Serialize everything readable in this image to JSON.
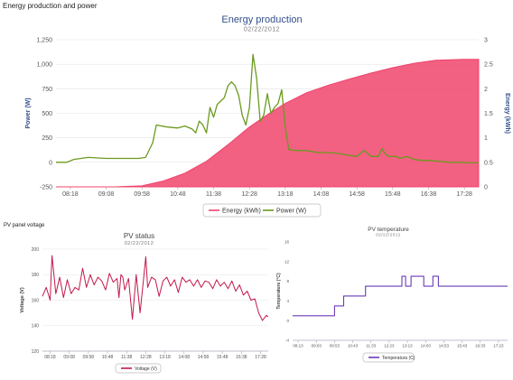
{
  "page": {
    "title": "Energy production and power",
    "pv_panel_label": "PV panel voltage"
  },
  "colors": {
    "energy": "#f0446c",
    "power": "#6b9a1f",
    "voltage": "#c2184b",
    "temperature": "#6a3bb6",
    "title_blue": "#34508a"
  },
  "chart_data": [
    {
      "id": "energy",
      "type": "area+line",
      "title": "Energy production",
      "subtitle": "02/22/2012",
      "ylabel_left": "Power (W)",
      "ylabel_right": "Energy (kWh)",
      "ylim_left": [
        -250,
        1250
      ],
      "ylim_right": [
        0,
        3
      ],
      "yticks_left": [
        "-250",
        "0",
        "250",
        "500",
        "750",
        "1,000",
        "1,250"
      ],
      "yticks_right": [
        "0",
        "0.5",
        "1",
        "1.5",
        "2",
        "2.5",
        "3"
      ],
      "xticks": [
        "08:18",
        "09:08",
        "09:58",
        "10:48",
        "11:38",
        "12:28",
        "13:18",
        "14:08",
        "14:58",
        "15:48",
        "16:38",
        "17:28"
      ],
      "x_start": "07:58",
      "x_end": "17:48",
      "legend": "bottom-center",
      "series": [
        {
          "name": "Energy (kWh)",
          "axis": "right",
          "type": "area",
          "x": [
            "07:58",
            "09:18",
            "09:58",
            "10:28",
            "10:58",
            "11:28",
            "11:58",
            "12:28",
            "12:58",
            "13:18",
            "13:48",
            "14:18",
            "14:48",
            "15:18",
            "15:48",
            "16:18",
            "16:48",
            "17:28",
            "17:48"
          ],
          "y": [
            0,
            0,
            0.02,
            0.12,
            0.28,
            0.52,
            0.86,
            1.22,
            1.52,
            1.7,
            1.92,
            2.07,
            2.2,
            2.32,
            2.43,
            2.52,
            2.58,
            2.6,
            2.6
          ]
        },
        {
          "name": "Power (W)",
          "axis": "left",
          "type": "line",
          "x": [
            "07:58",
            "08:13",
            "08:23",
            "08:43",
            "09:08",
            "09:38",
            "09:53",
            "10:03",
            "10:13",
            "10:18",
            "10:33",
            "10:48",
            "10:58",
            "11:08",
            "11:13",
            "11:18",
            "11:23",
            "11:28",
            "11:33",
            "11:38",
            "11:43",
            "11:53",
            "11:58",
            "12:03",
            "12:08",
            "12:13",
            "12:18",
            "12:23",
            "12:28",
            "12:33",
            "12:38",
            "12:43",
            "12:48",
            "12:53",
            "12:58",
            "13:03",
            "13:08",
            "13:13",
            "13:18",
            "13:23",
            "13:33",
            "13:48",
            "14:03",
            "14:18",
            "14:33",
            "14:48",
            "14:58",
            "15:08",
            "15:18",
            "15:28",
            "15:33",
            "15:38",
            "15:43",
            "15:48",
            "15:53",
            "15:58",
            "16:08",
            "16:18",
            "16:28",
            "16:38",
            "16:53",
            "17:08",
            "17:23",
            "17:38",
            "17:48"
          ],
          "y": [
            0,
            0,
            30,
            50,
            40,
            40,
            40,
            50,
            200,
            380,
            360,
            350,
            370,
            340,
            300,
            420,
            380,
            300,
            560,
            460,
            590,
            660,
            780,
            820,
            780,
            680,
            480,
            380,
            560,
            1100,
            860,
            420,
            480,
            700,
            500,
            560,
            600,
            740,
            360,
            130,
            120,
            120,
            100,
            100,
            90,
            70,
            60,
            120,
            60,
            60,
            140,
            80,
            60,
            60,
            60,
            40,
            60,
            30,
            20,
            20,
            10,
            0,
            0,
            -5,
            -5
          ]
        }
      ]
    },
    {
      "id": "pv",
      "type": "line",
      "title": "PV status",
      "subtitle": "02/22/2012",
      "ylabel": "Voltage (V)",
      "ylim": [
        120,
        200
      ],
      "yticks": [
        "120",
        "140",
        "160",
        "180",
        "200"
      ],
      "xticks": [
        "08:18",
        "09:08",
        "09:58",
        "10:48",
        "11:38",
        "12:28",
        "13:18",
        "14:08",
        "14:58",
        "15:48",
        "16:38",
        "17:28"
      ],
      "x_start": "07:58",
      "x_end": "17:48",
      "legend": "bottom-center",
      "series": [
        {
          "name": "Voltage (V)",
          "x": [
            "07:58",
            "08:08",
            "08:18",
            "08:23",
            "08:33",
            "08:43",
            "08:48",
            "08:53",
            "09:03",
            "09:13",
            "09:23",
            "09:33",
            "09:43",
            "09:53",
            "10:03",
            "10:13",
            "10:23",
            "10:33",
            "10:43",
            "10:53",
            "11:03",
            "11:13",
            "11:18",
            "11:23",
            "11:28",
            "11:33",
            "11:43",
            "11:53",
            "12:03",
            "12:13",
            "12:23",
            "12:28",
            "12:33",
            "12:43",
            "12:53",
            "13:03",
            "13:13",
            "13:23",
            "13:33",
            "13:43",
            "13:53",
            "14:03",
            "14:13",
            "14:23",
            "14:33",
            "14:43",
            "14:53",
            "15:03",
            "15:13",
            "15:23",
            "15:33",
            "15:43",
            "15:53",
            "16:03",
            "16:13",
            "16:23",
            "16:33",
            "16:43",
            "16:53",
            "17:03",
            "17:13",
            "17:23",
            "17:33",
            "17:43",
            "17:48"
          ],
          "y": [
            163,
            170,
            160,
            195,
            165,
            178,
            170,
            162,
            176,
            165,
            170,
            168,
            185,
            170,
            180,
            172,
            178,
            175,
            168,
            181,
            174,
            177,
            162,
            180,
            178,
            168,
            177,
            145,
            180,
            150,
            179,
            194,
            170,
            178,
            176,
            163,
            175,
            178,
            171,
            176,
            166,
            178,
            174,
            176,
            171,
            176,
            170,
            175,
            174,
            169,
            176,
            171,
            174,
            169,
            175,
            167,
            172,
            164,
            167,
            160,
            161,
            150,
            144,
            148,
            147
          ]
        }
      ]
    },
    {
      "id": "temp",
      "type": "line",
      "title": "PV temperature",
      "subtitle": "02/22/2012",
      "ylabel": "Temperature (°C)",
      "ylim": [
        -4,
        16
      ],
      "yticks": [
        "-4",
        "0",
        "4",
        "8",
        "12",
        "16"
      ],
      "xticks": [
        "08:13",
        "09:03",
        "09:53",
        "10:43",
        "11:33",
        "12:23",
        "13:13",
        "14:03",
        "14:53",
        "15:43",
        "16:33",
        "17:23"
      ],
      "x_start": "07:58",
      "x_end": "17:48",
      "legend": "bottom-center",
      "series": [
        {
          "name": "Temperatura (C)",
          "x": [
            "07:58",
            "09:53",
            "09:53",
            "10:18",
            "10:18",
            "11:18",
            "11:18",
            "12:58",
            "12:58",
            "13:08",
            "13:08",
            "13:23",
            "13:23",
            "13:58",
            "13:58",
            "14:23",
            "14:23",
            "14:38",
            "14:38",
            "17:48"
          ],
          "y": [
            1,
            1,
            3,
            3,
            5,
            5,
            7,
            7,
            9,
            9,
            7,
            7,
            9,
            9,
            7,
            7,
            9,
            9,
            7,
            7
          ]
        }
      ]
    }
  ]
}
